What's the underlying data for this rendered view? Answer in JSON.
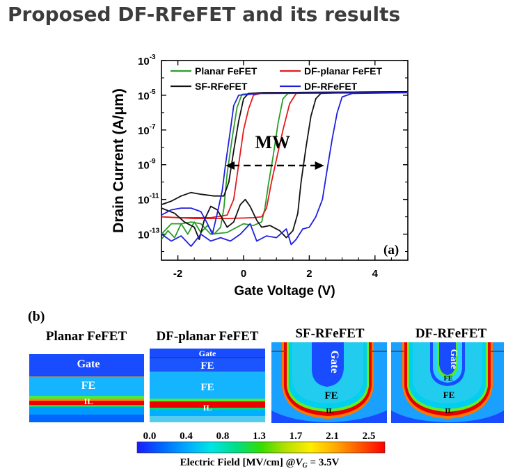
{
  "page": {
    "title": "Proposed DF-RFeFET and its results"
  },
  "chart_data": [
    {
      "type": "line",
      "panel_label": "(a)",
      "xlabel": "Gate Voltage (V)",
      "ylabel": "Drain Current (A/μm)",
      "xlim": [
        -2.5,
        5
      ],
      "ylim_log10": [
        -14.5,
        -3
      ],
      "y_scale": "log",
      "x_ticks": [
        {
          "v": -2,
          "label": "-2"
        },
        {
          "v": 0,
          "label": "0"
        },
        {
          "v": 2,
          "label": "2"
        },
        {
          "v": 4,
          "label": "4"
        }
      ],
      "y_ticks": [
        {
          "v": -3,
          "base": "10",
          "exp": "-3"
        },
        {
          "v": -5,
          "base": "10",
          "exp": "-5"
        },
        {
          "v": -7,
          "base": "10",
          "exp": "-7"
        },
        {
          "v": -9,
          "base": "10",
          "exp": "-9"
        },
        {
          "v": -11,
          "base": "10",
          "exp": "-11"
        },
        {
          "v": -13,
          "base": "10",
          "exp": "-13"
        }
      ],
      "legend_position": "top",
      "series": [
        {
          "name": "Planar FeFET",
          "color": "#2a9d2a",
          "points": [
            [
              -2.5,
              -13.3
            ],
            [
              -2.3,
              -12.8
            ],
            [
              -2.1,
              -13.2
            ],
            [
              -1.9,
              -12.4
            ],
            [
              -1.7,
              -13.0
            ],
            [
              -1.5,
              -12.3
            ],
            [
              -1.3,
              -12.9
            ],
            [
              -1.1,
              -12.5
            ],
            [
              -0.9,
              -13.0
            ],
            [
              -0.7,
              -12.6
            ],
            [
              -0.6,
              -11.5
            ],
            [
              -0.5,
              -9.5
            ],
            [
              -0.35,
              -7.5
            ],
            [
              -0.2,
              -5.7
            ],
            [
              -0.05,
              -4.95
            ],
            [
              0.5,
              -4.85
            ],
            [
              5,
              -4.8
            ]
          ],
          "points_2": [
            [
              -2.5,
              -13.0
            ],
            [
              -2.2,
              -12.4
            ],
            [
              -1.9,
              -12.4
            ],
            [
              -1.6,
              -12.3
            ],
            [
              -1.3,
              -12.4
            ],
            [
              -1.0,
              -13.0
            ],
            [
              -0.5,
              -12.9
            ],
            [
              0,
              -12.4
            ],
            [
              0.3,
              -12.5
            ],
            [
              0.55,
              -12.3
            ],
            [
              0.65,
              -11.5
            ],
            [
              0.75,
              -10.2
            ],
            [
              0.9,
              -8.5
            ],
            [
              1.05,
              -6.6
            ],
            [
              1.2,
              -5.2
            ],
            [
              1.35,
              -4.9
            ],
            [
              2,
              -4.85
            ],
            [
              5,
              -4.8
            ]
          ]
        },
        {
          "name": "DF-planar FeFET",
          "color": "#e41a1c",
          "points": [
            [
              -2.5,
              -12.0
            ],
            [
              -2.0,
              -12.05
            ],
            [
              -1.5,
              -12.05
            ],
            [
              -1.0,
              -12.05
            ],
            [
              -0.5,
              -11.9
            ],
            [
              -0.3,
              -11.0
            ],
            [
              -0.15,
              -9.0
            ],
            [
              0,
              -7.0
            ],
            [
              0.15,
              -5.8
            ],
            [
              0.3,
              -5.0
            ],
            [
              0.6,
              -4.85
            ],
            [
              5,
              -4.8
            ]
          ],
          "points_2": [
            [
              -2.5,
              -12.0
            ],
            [
              -1.5,
              -12.1
            ],
            [
              -0.5,
              -12.1
            ],
            [
              0.3,
              -12.05
            ],
            [
              0.55,
              -12.0
            ],
            [
              0.7,
              -11.5
            ],
            [
              0.85,
              -10.0
            ],
            [
              1.0,
              -8.7
            ],
            [
              1.2,
              -7.0
            ],
            [
              1.4,
              -5.5
            ],
            [
              1.6,
              -4.9
            ],
            [
              2,
              -4.85
            ],
            [
              5,
              -4.8
            ]
          ]
        },
        {
          "name": "SF-RFeFET",
          "color": "#111111",
          "points": [
            [
              -2.5,
              -11.3
            ],
            [
              -2.2,
              -11.1
            ],
            [
              -1.9,
              -10.8
            ],
            [
              -1.6,
              -10.6
            ],
            [
              -1.3,
              -10.7
            ],
            [
              -0.9,
              -10.8
            ],
            [
              -0.6,
              -10.8
            ],
            [
              -0.45,
              -10.0
            ],
            [
              -0.3,
              -8.2
            ],
            [
              -0.15,
              -6.5
            ],
            [
              0,
              -5.2
            ],
            [
              0.15,
              -4.9
            ],
            [
              0.6,
              -4.85
            ],
            [
              5,
              -4.8
            ]
          ],
          "points_2": [
            [
              -2.5,
              -11.5
            ],
            [
              -2.1,
              -11.8
            ],
            [
              -1.8,
              -12.3
            ],
            [
              -1.5,
              -12.6
            ],
            [
              -1.35,
              -13.3
            ],
            [
              -1.2,
              -12.2
            ],
            [
              -1.0,
              -11.4
            ],
            [
              -0.8,
              -11.6
            ],
            [
              -0.5,
              -12.6
            ],
            [
              -0.3,
              -12.3
            ],
            [
              -0.1,
              -11.3
            ],
            [
              0.05,
              -11.0
            ],
            [
              0.2,
              -11.4
            ],
            [
              0.4,
              -12.2
            ],
            [
              0.55,
              -12.6
            ],
            [
              0.8,
              -12.5
            ],
            [
              1.1,
              -12.8
            ],
            [
              1.3,
              -13.2
            ],
            [
              1.5,
              -12.8
            ],
            [
              1.65,
              -11.8
            ],
            [
              1.75,
              -10.0
            ],
            [
              1.9,
              -8.0
            ],
            [
              2.05,
              -6.2
            ],
            [
              2.2,
              -5.2
            ],
            [
              2.35,
              -4.9
            ],
            [
              3,
              -4.85
            ],
            [
              5,
              -4.8
            ]
          ]
        },
        {
          "name": "DF-RFeFET",
          "color": "#1f1fe0",
          "points": [
            [
              -2.5,
              -11.9
            ],
            [
              -2.2,
              -11.6
            ],
            [
              -1.9,
              -11.5
            ],
            [
              -1.6,
              -11.5
            ],
            [
              -1.3,
              -11.7
            ],
            [
              -1.1,
              -12.4
            ],
            [
              -0.95,
              -13.0
            ],
            [
              -0.8,
              -11.8
            ],
            [
              -0.65,
              -10.5
            ],
            [
              -0.55,
              -9.0
            ],
            [
              -0.4,
              -7.0
            ],
            [
              -0.3,
              -5.6
            ],
            [
              -0.15,
              -5.0
            ],
            [
              0.5,
              -4.9
            ],
            [
              5,
              -4.85
            ]
          ],
          "points_2": [
            [
              -2.5,
              -13.0
            ],
            [
              -2.2,
              -13.4
            ],
            [
              -1.9,
              -13.1
            ],
            [
              -1.6,
              -13.7
            ],
            [
              -1.3,
              -13.0
            ],
            [
              -1.0,
              -13.4
            ],
            [
              -0.7,
              -13.2
            ],
            [
              -0.4,
              -13.4
            ],
            [
              -0.1,
              -13.0
            ],
            [
              0.2,
              -12.4
            ],
            [
              0.4,
              -13.4
            ],
            [
              0.7,
              -13.1
            ],
            [
              1.0,
              -13.2
            ],
            [
              1.3,
              -12.7
            ],
            [
              1.45,
              -13.6
            ],
            [
              1.6,
              -13.3
            ],
            [
              1.8,
              -12.7
            ],
            [
              2.0,
              -12.6
            ],
            [
              2.2,
              -12.0
            ],
            [
              2.4,
              -11.0
            ],
            [
              2.55,
              -9.2
            ],
            [
              2.7,
              -7.5
            ],
            [
              2.85,
              -6.0
            ],
            [
              3.0,
              -5.1
            ],
            [
              3.3,
              -4.9
            ],
            [
              5,
              -4.85
            ]
          ]
        }
      ],
      "annotation": {
        "text": "MW",
        "arrow_from": [
          -0.55,
          -9.05
        ],
        "arrow_to": [
          2.45,
          -9.05
        ]
      }
    },
    {
      "type": "heatmap",
      "panel_label": "(b)",
      "panels": [
        {
          "title": "Planar FeFET",
          "labels": [
            "Gate",
            "FE",
            "IL"
          ]
        },
        {
          "title": "DF-planar FeFET",
          "labels": [
            "Gate",
            "FE",
            "FE",
            "IL"
          ]
        },
        {
          "title": "SF-RFeFET",
          "labels": [
            "Gate",
            "FE",
            "IL"
          ]
        },
        {
          "title": "DF-RFeFET",
          "labels": [
            "Gate",
            "FE",
            "FE",
            "IL"
          ]
        }
      ],
      "colorbar": {
        "ticks": [
          "0.0",
          "0.4",
          "0.8",
          "1.3",
          "1.7",
          "2.1",
          "2.5"
        ],
        "label_prefix": "Electric Field [MV/cm] @",
        "label_var": "V",
        "label_sub": "G",
        "label_suffix": " = 3.5V",
        "colors": [
          "#1a1aff",
          "#0066ff",
          "#00aaff",
          "#00e5e5",
          "#00dd88",
          "#33dd00",
          "#b5e000",
          "#ffee00",
          "#ffaa00",
          "#ff5500",
          "#ff0000"
        ]
      }
    }
  ]
}
